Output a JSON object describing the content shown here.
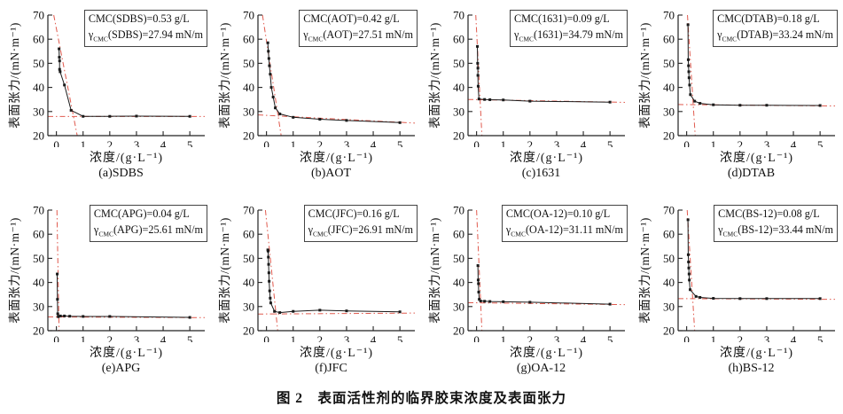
{
  "figure": {
    "caption": "图 2　表面活性剂的临界胶束浓度及表面张力"
  },
  "axes": {
    "xlabel": "浓度/(g·L⁻¹)",
    "ylabel": "表面张力/(mN·m⁻¹)",
    "xticks": [
      0,
      1,
      2,
      3,
      4,
      5
    ],
    "yticks": [
      20,
      30,
      40,
      50,
      60,
      70
    ],
    "xlim": [
      -0.32,
      5.56
    ],
    "ylim": [
      20,
      70
    ],
    "grid": false,
    "legend": "none"
  },
  "colors": {
    "red_line": "#e05a4e",
    "data_line": "#1a1a1a",
    "axis": "#222222"
  },
  "chart_data": [
    {
      "type": "line",
      "name": "SDBS",
      "subcaption": "(a)SDBS",
      "cmc_g_per_L": 0.53,
      "gamma_cmc_mN_per_m": 27.94,
      "annotation": {
        "line1": "CMC(SDBS)=0.53 g/L",
        "gamma": "γ",
        "gamma_sub": "CMC",
        "line2_rest": "(SDBS)=27.94 mN/m"
      },
      "points": [
        [
          0.1,
          56
        ],
        [
          0.11,
          52.5
        ],
        [
          0.12,
          51
        ],
        [
          0.12,
          47.5
        ],
        [
          0.14,
          46.5
        ],
        [
          0.3,
          41
        ],
        [
          0.55,
          30.5
        ],
        [
          1,
          28
        ],
        [
          2,
          28
        ],
        [
          3,
          28.1
        ],
        [
          5,
          28
        ]
      ],
      "cmc_line": [
        [
          -0.1,
          70
        ],
        [
          0.78,
          20
        ]
      ],
      "plateau_line": [
        [
          -0.32,
          27.94
        ],
        [
          5.56,
          27.94
        ]
      ]
    },
    {
      "type": "line",
      "name": "AOT",
      "subcaption": "(b)AOT",
      "cmc_g_per_L": 0.42,
      "gamma_cmc_mN_per_m": 27.51,
      "annotation": {
        "line1": "CMC(AOT)=0.42 g/L",
        "gamma": "γ",
        "gamma_sub": "CMC",
        "line2_rest": "(AOT)=27.51 mN/m"
      },
      "points": [
        [
          0.05,
          58.5
        ],
        [
          0.07,
          55
        ],
        [
          0.09,
          52
        ],
        [
          0.11,
          49
        ],
        [
          0.14,
          45.5
        ],
        [
          0.18,
          40
        ],
        [
          0.25,
          36
        ],
        [
          0.33,
          31.5
        ],
        [
          0.5,
          29
        ],
        [
          1,
          27.6
        ],
        [
          2,
          26.8
        ],
        [
          3,
          26.3
        ],
        [
          5,
          25.4
        ]
      ],
      "cmc_line": [
        [
          -0.15,
          70
        ],
        [
          0.55,
          20
        ]
      ],
      "plateau_line": [
        [
          -0.32,
          28.6
        ],
        [
          5.56,
          25.2
        ]
      ]
    },
    {
      "type": "line",
      "name": "1631",
      "subcaption": "(c)1631",
      "cmc_g_per_L": 0.09,
      "gamma_cmc_mN_per_m": 34.79,
      "annotation": {
        "line1": "CMC(1631)=0.09 g/L",
        "gamma": "γ",
        "gamma_sub": "CMC",
        "line2_rest": "(1631)=34.79 mN/m"
      },
      "points": [
        [
          0.03,
          57
        ],
        [
          0.04,
          50
        ],
        [
          0.05,
          48
        ],
        [
          0.05,
          45
        ],
        [
          0.06,
          40.5
        ],
        [
          0.09,
          35.2
        ],
        [
          0.3,
          35
        ],
        [
          0.5,
          34.9
        ],
        [
          1,
          34.8
        ],
        [
          2,
          34.3
        ],
        [
          5,
          33.9
        ]
      ],
      "cmc_line": [
        [
          -0.03,
          70
        ],
        [
          0.2,
          20
        ]
      ],
      "plateau_line": [
        [
          -0.32,
          35.0
        ],
        [
          5.56,
          33.8
        ]
      ]
    },
    {
      "type": "line",
      "name": "DTAB",
      "subcaption": "(d)DTAB",
      "cmc_g_per_L": 0.18,
      "gamma_cmc_mN_per_m": 33.24,
      "annotation": {
        "line1": "CMC(DTAB)=0.18 g/L",
        "gamma": "γ",
        "gamma_sub": "CMC",
        "line2_rest": "(DTAB)=33.24 mN/m"
      },
      "points": [
        [
          0.05,
          66
        ],
        [
          0.06,
          51.5
        ],
        [
          0.07,
          49
        ],
        [
          0.08,
          46.5
        ],
        [
          0.09,
          44
        ],
        [
          0.11,
          41
        ],
        [
          0.14,
          37
        ],
        [
          0.3,
          34.3
        ],
        [
          0.5,
          33.4
        ],
        [
          1,
          32.8
        ],
        [
          2,
          32.6
        ],
        [
          3,
          32.6
        ],
        [
          5,
          32.5
        ]
      ],
      "cmc_line": [
        [
          0.03,
          70
        ],
        [
          0.32,
          20
        ]
      ],
      "plateau_line": [
        [
          -0.32,
          32.9
        ],
        [
          5.56,
          32.3
        ]
      ]
    },
    {
      "type": "line",
      "name": "APG",
      "subcaption": "(e)APG",
      "cmc_g_per_L": 0.04,
      "gamma_cmc_mN_per_m": 25.61,
      "annotation": {
        "line1": "CMC(APG)=0.04 g/L",
        "gamma": "γ",
        "gamma_sub": "CMC",
        "line2_rest": "(APG)=25.61 mN/m"
      },
      "points": [
        [
          0.03,
          43.5
        ],
        [
          0.04,
          33
        ],
        [
          0.05,
          27
        ],
        [
          0.07,
          25.8
        ],
        [
          0.15,
          26.1
        ],
        [
          0.3,
          26.1
        ],
        [
          0.5,
          26
        ],
        [
          1,
          25.9
        ],
        [
          2,
          25.9
        ],
        [
          5,
          25.5
        ]
      ],
      "cmc_line": [
        [
          0.02,
          70
        ],
        [
          0.1,
          20
        ]
      ],
      "plateau_line": [
        [
          -0.32,
          25.7
        ],
        [
          5.56,
          25.4
        ]
      ]
    },
    {
      "type": "line",
      "name": "JFC",
      "subcaption": "(f)JFC",
      "cmc_g_per_L": 0.16,
      "gamma_cmc_mN_per_m": 26.91,
      "annotation": {
        "line1": "CMC(JFC)=0.16 g/L",
        "gamma": "γ",
        "gamma_sub": "CMC",
        "line2_rest": "(JFC)=26.91 mN/m"
      },
      "points": [
        [
          0.05,
          53.5
        ],
        [
          0.06,
          53
        ],
        [
          0.07,
          50.5
        ],
        [
          0.08,
          47.5
        ],
        [
          0.09,
          44
        ],
        [
          0.1,
          40.5
        ],
        [
          0.12,
          36.5
        ],
        [
          0.14,
          33.5
        ],
        [
          0.16,
          31.5
        ],
        [
          0.3,
          28
        ],
        [
          0.5,
          27.5
        ],
        [
          1,
          28
        ],
        [
          2,
          28.5
        ],
        [
          3,
          28.2
        ],
        [
          5,
          27.8
        ]
      ],
      "cmc_line": [
        [
          -0.04,
          70
        ],
        [
          0.42,
          20
        ]
      ],
      "plateau_line": [
        [
          -0.32,
          26.9
        ],
        [
          5.56,
          27.3
        ]
      ]
    },
    {
      "type": "line",
      "name": "OA-12",
      "subcaption": "(g)OA-12",
      "cmc_g_per_L": 0.1,
      "gamma_cmc_mN_per_m": 31.11,
      "annotation": {
        "line1": "CMC(OA-12)=0.10 g/L",
        "gamma": "γ",
        "gamma_sub": "CMC",
        "line2_rest": "(OA-12)=31.11 mN/m"
      },
      "points": [
        [
          0.05,
          47
        ],
        [
          0.06,
          41
        ],
        [
          0.07,
          39.5
        ],
        [
          0.08,
          36
        ],
        [
          0.1,
          33
        ],
        [
          0.15,
          32.3
        ],
        [
          0.3,
          32.2
        ],
        [
          0.5,
          32.1
        ],
        [
          1,
          32
        ],
        [
          2,
          31.8
        ],
        [
          5,
          31
        ]
      ],
      "cmc_line": [
        [
          0.0,
          70
        ],
        [
          0.2,
          20
        ]
      ],
      "plateau_line": [
        [
          -0.32,
          31.6
        ],
        [
          5.56,
          30.8
        ]
      ]
    },
    {
      "type": "line",
      "name": "BS-12",
      "subcaption": "(h)BS-12",
      "cmc_g_per_L": 0.08,
      "gamma_cmc_mN_per_m": 33.44,
      "annotation": {
        "line1": "CMC(BS-12)=0.08 g/L",
        "gamma": "γ",
        "gamma_sub": "CMC",
        "line2_rest": "(BS-12)=33.44 mN/m"
      },
      "points": [
        [
          0.05,
          66
        ],
        [
          0.06,
          51.5
        ],
        [
          0.07,
          48.5
        ],
        [
          0.08,
          46
        ],
        [
          0.09,
          43.5
        ],
        [
          0.1,
          41
        ],
        [
          0.13,
          37
        ],
        [
          0.35,
          34.2
        ],
        [
          0.5,
          33.8
        ],
        [
          1,
          33.4
        ],
        [
          2,
          33.3
        ],
        [
          3,
          33.3
        ],
        [
          5,
          33.3
        ]
      ],
      "cmc_line": [
        [
          0.02,
          70
        ],
        [
          0.3,
          20
        ]
      ],
      "plateau_line": [
        [
          -0.32,
          33.3
        ],
        [
          5.56,
          33.0
        ]
      ]
    }
  ]
}
